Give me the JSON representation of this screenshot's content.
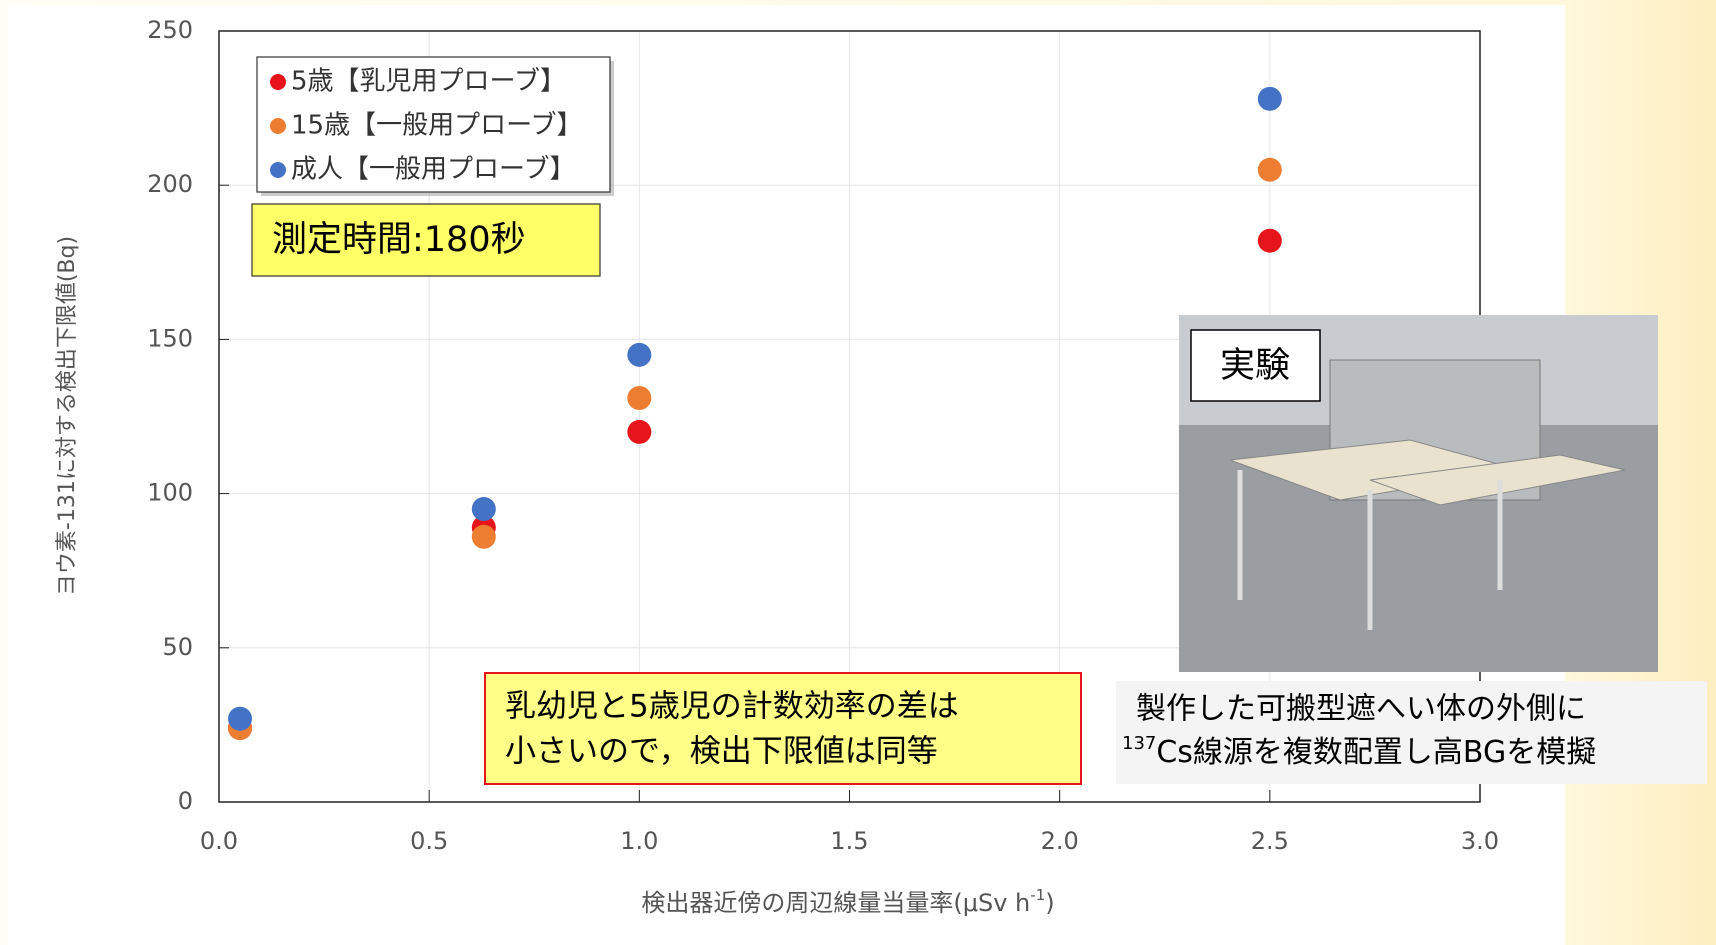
{
  "chart_data": {
    "type": "scatter",
    "series": [
      {
        "name": "5歳【乳児用プローブ】",
        "color": "#e8141b",
        "x": [
          0.05,
          0.63,
          1.0,
          2.5
        ],
        "values": [
          24,
          89,
          120,
          182
        ]
      },
      {
        "name": "15歳【一般用プローブ】",
        "color": "#ed7d31",
        "x": [
          0.05,
          0.63,
          1.0,
          2.5
        ],
        "values": [
          24,
          86,
          131,
          205
        ]
      },
      {
        "name": "成人【一般用プローブ】",
        "color": "#4472c4",
        "x": [
          0.05,
          0.63,
          1.0,
          2.5
        ],
        "values": [
          27,
          95,
          145,
          228
        ]
      }
    ],
    "xlim": [
      0,
      3
    ],
    "ylim": [
      0,
      250
    ],
    "xticks": [
      {
        "value": 0,
        "label": "0.0"
      },
      {
        "value": 0.5,
        "label": "0.5"
      },
      {
        "value": 1,
        "label": "1.0"
      },
      {
        "value": 1.5,
        "label": "1.5"
      },
      {
        "value": 2,
        "label": "2.0"
      },
      {
        "value": 2.5,
        "label": "2.5"
      },
      {
        "value": 3,
        "label": "3.0"
      }
    ],
    "yticks": [
      0,
      50,
      100,
      150,
      200,
      250
    ],
    "grid": true,
    "y_label": "ヨウ素-131に対する検出下限値(Bq)",
    "x_label": {
      "main": "検出器近傍の周辺線量当量率(μSv h",
      "sup": "-1",
      "end": ")"
    },
    "annotations": {
      "time": "測定時間:180秒",
      "note": [
        "乳幼児と5歳児の計数効率の差は",
        "小さいので，検出下限値は同等"
      ],
      "photo_label": "実験",
      "caption": {
        "line1": "製作した可搬型遮へい体の外側に",
        "sup": "137",
        "line2": "Cs線源を複数配置し高BGを模擬"
      }
    }
  }
}
